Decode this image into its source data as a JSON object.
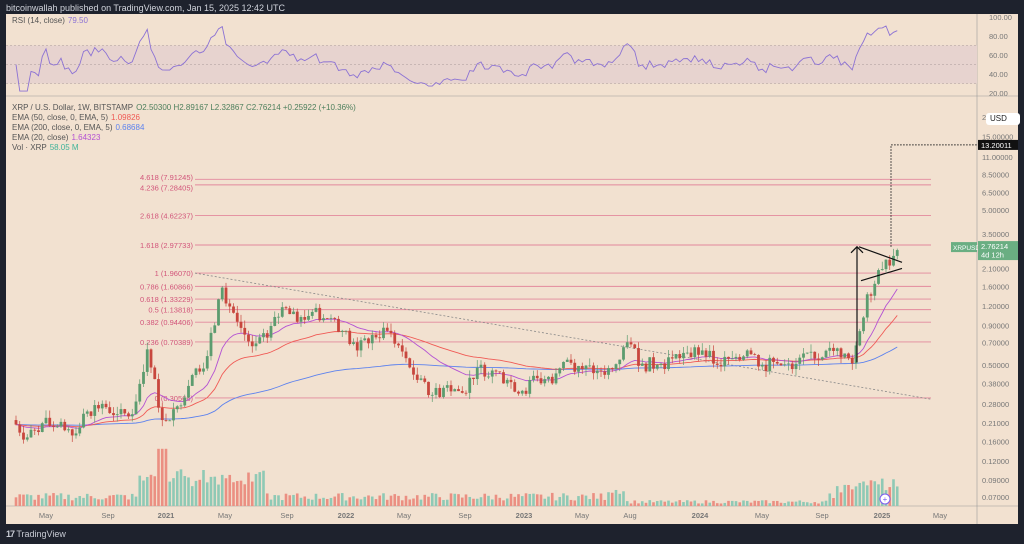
{
  "header": {
    "published": "bitcoinwallah published on TradingView.com, Jan 15, 2025 12:42 UTC"
  },
  "footer": {
    "brand": "TradingView"
  },
  "legend": {
    "rsi_label": "RSI (14, close)",
    "rsi_value": "79.50",
    "symbol": "XRP / U.S. Dollar, 1W, BITSTAMP",
    "ohlc": "O2.50300  H2.89167  L2.32867  C2.76214  +0.25922 (+10.36%)",
    "ema50_label": "EMA (50, close, 0, EMA, 5)",
    "ema50_value": "1.09826",
    "ema200_label": "EMA (200, close, 0, EMA, 5)",
    "ema200_value": "0.68684",
    "ema20_label": "EMA (20, close)",
    "ema20_value": "1.64323",
    "vol_label": "Vol · XRP",
    "vol_value": "58.05 M"
  },
  "currency": "USD",
  "colors": {
    "up": "#5c9c6f",
    "down": "#c8473e",
    "vol_up": "#8fc9b5",
    "vol_down": "#eb8f82",
    "fib": "#e3889d",
    "ema50": "#f05a55",
    "ema200": "#5d82ee",
    "ema20": "#b452d3",
    "rsi": "#8c72d4",
    "last_price": "#6aae82"
  },
  "chart_data": {
    "type": "candlestick",
    "scale": "log",
    "title": "XRP / U.S. Dollar, 1W, BITSTAMP",
    "x_tick_labels": [
      "May",
      "Sep",
      "2021",
      "May",
      "Sep",
      "2022",
      "May",
      "Sep",
      "2023",
      "May",
      "Aug",
      "2024",
      "May",
      "Sep",
      "2025",
      "May"
    ],
    "y_tick_labels": [
      "20.00000",
      "15.00000",
      "11.00000",
      "8.50000",
      "6.50000",
      "5.00000",
      "3.50000",
      "2.10000",
      "1.60000",
      "1.20000",
      "0.90000",
      "0.70000",
      "0.50000",
      "0.38000",
      "0.28000",
      "0.21000",
      "0.16000",
      "0.12000",
      "0.09000",
      "0.07000"
    ],
    "rsi_tick_labels": [
      "100.00",
      "80.00",
      "60.00",
      "40.00",
      "20.00"
    ],
    "monthly_close_approx": {
      "start": "2020-03",
      "values": [
        0.17,
        0.21,
        0.2,
        0.175,
        0.25,
        0.28,
        0.24,
        0.24,
        0.63,
        0.22,
        0.27,
        0.43,
        0.57,
        1.58,
        0.95,
        0.66,
        0.75,
        1.18,
        0.95,
        1.1,
        1.0,
        0.83,
        0.62,
        0.78,
        0.83,
        0.61,
        0.4,
        0.32,
        0.37,
        0.33,
        0.48,
        0.46,
        0.4,
        0.34,
        0.41,
        0.38,
        0.54,
        0.47,
        0.46,
        0.47,
        0.7,
        0.51,
        0.5,
        0.55,
        0.6,
        0.62,
        0.5,
        0.55,
        0.62,
        0.5,
        0.51,
        0.47,
        0.6,
        0.56,
        0.64,
        0.51,
        1.43,
        2.08,
        2.76
      ]
    },
    "fib_levels": [
      {
        "label": "4.618 (7.91245)",
        "value": 7.91245
      },
      {
        "label": "4.236 (7.28405)",
        "value": 7.28405
      },
      {
        "label": "2.618 (4.62237)",
        "value": 4.62237
      },
      {
        "label": "1.618 (2.97733)",
        "value": 2.97733
      },
      {
        "label": "1 (1.96070)",
        "value": 1.9607
      },
      {
        "label": "0.786 (1.60866)",
        "value": 1.60866
      },
      {
        "label": "0.618 (1.33229)",
        "value": 1.33229
      },
      {
        "label": "0.5 (1.13818)",
        "value": 1.13818
      },
      {
        "label": "0.382 (0.94406)",
        "value": 0.94406
      },
      {
        "label": "0.236 (0.70389)",
        "value": 0.70389
      },
      {
        "label": "0 (0.30566)",
        "value": 0.30566
      }
    ],
    "last_price": {
      "symbol": "XRPUSD",
      "value": "2.76214",
      "countdown": "4d 12h"
    },
    "target": {
      "value": "13.20011"
    },
    "rsi_bands": [
      70,
      50,
      30
    ]
  }
}
